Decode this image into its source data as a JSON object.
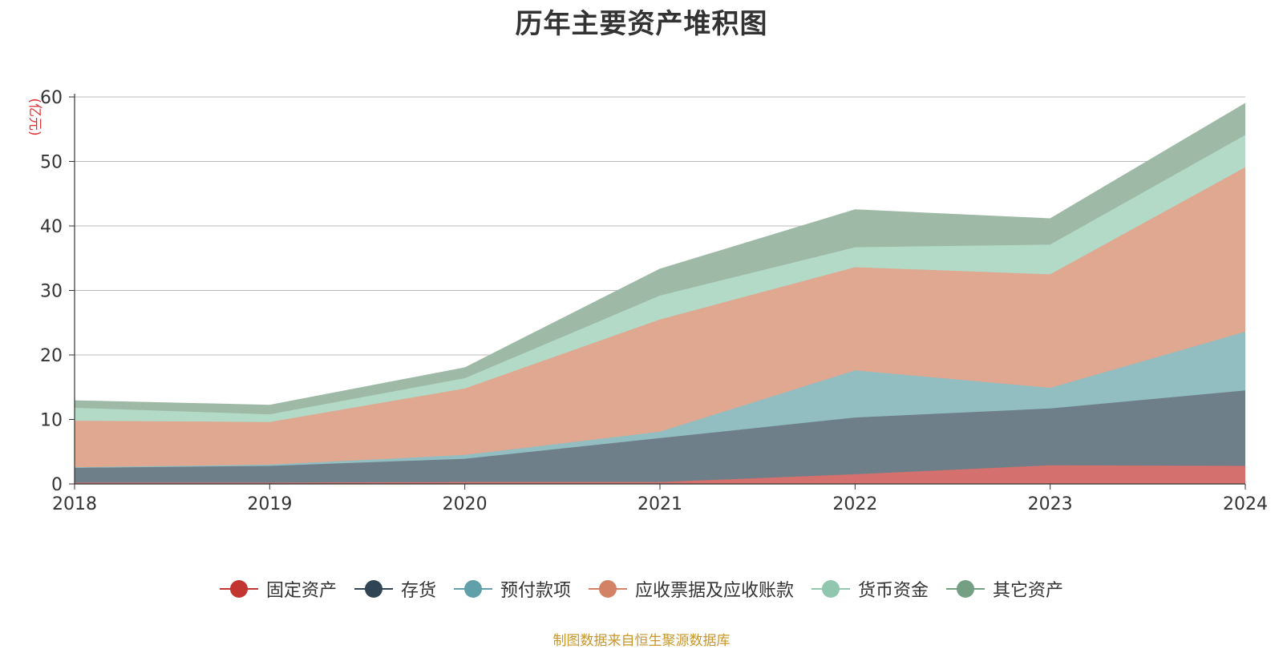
{
  "chart_data": {
    "type": "area",
    "stacked": true,
    "title": "历年主要资产堆积图",
    "ylabel": "(亿元)",
    "xlabel": "",
    "ylim": [
      0,
      60
    ],
    "yticks": [
      "0",
      "10",
      "20",
      "30",
      "40",
      "50",
      "60"
    ],
    "grid": true,
    "legend_position": "bottom",
    "categories": [
      "2018",
      "2019",
      "2020",
      "2021",
      "2022",
      "2023",
      "2024"
    ],
    "series": [
      {
        "name": "固定资产",
        "color": "#c23531",
        "fill": "#d4706d",
        "values": [
          0.2,
          0.2,
          0.3,
          0.3,
          1.5,
          2.9,
          2.8
        ]
      },
      {
        "name": "存货",
        "color": "#2f4554",
        "fill": "#6f7f89",
        "values": [
          2.3,
          2.6,
          3.6,
          6.8,
          8.8,
          8.8,
          11.7
        ]
      },
      {
        "name": "预付款项",
        "color": "#61a0a8",
        "fill": "#92bec2",
        "values": [
          0.1,
          0.2,
          0.6,
          1.0,
          7.3,
          3.2,
          9.1
        ]
      },
      {
        "name": "应收票据及应收账款",
        "color": "#d48265",
        "fill": "#e0a791",
        "values": [
          7.2,
          6.6,
          10.3,
          17.4,
          16.0,
          17.6,
          25.5
        ]
      },
      {
        "name": "货币资金",
        "color": "#91c7ae",
        "fill": "#b2dac7",
        "values": [
          2.0,
          1.2,
          1.6,
          3.7,
          3.1,
          4.6,
          5.0
        ]
      },
      {
        "name": "其它资产",
        "color": "#749f83",
        "fill": "#9eb9a6",
        "values": [
          1.1,
          1.4,
          1.6,
          4.1,
          5.8,
          4.0,
          4.9
        ]
      }
    ]
  },
  "footer": {
    "source": "制图数据来自恒生聚源数据库"
  }
}
